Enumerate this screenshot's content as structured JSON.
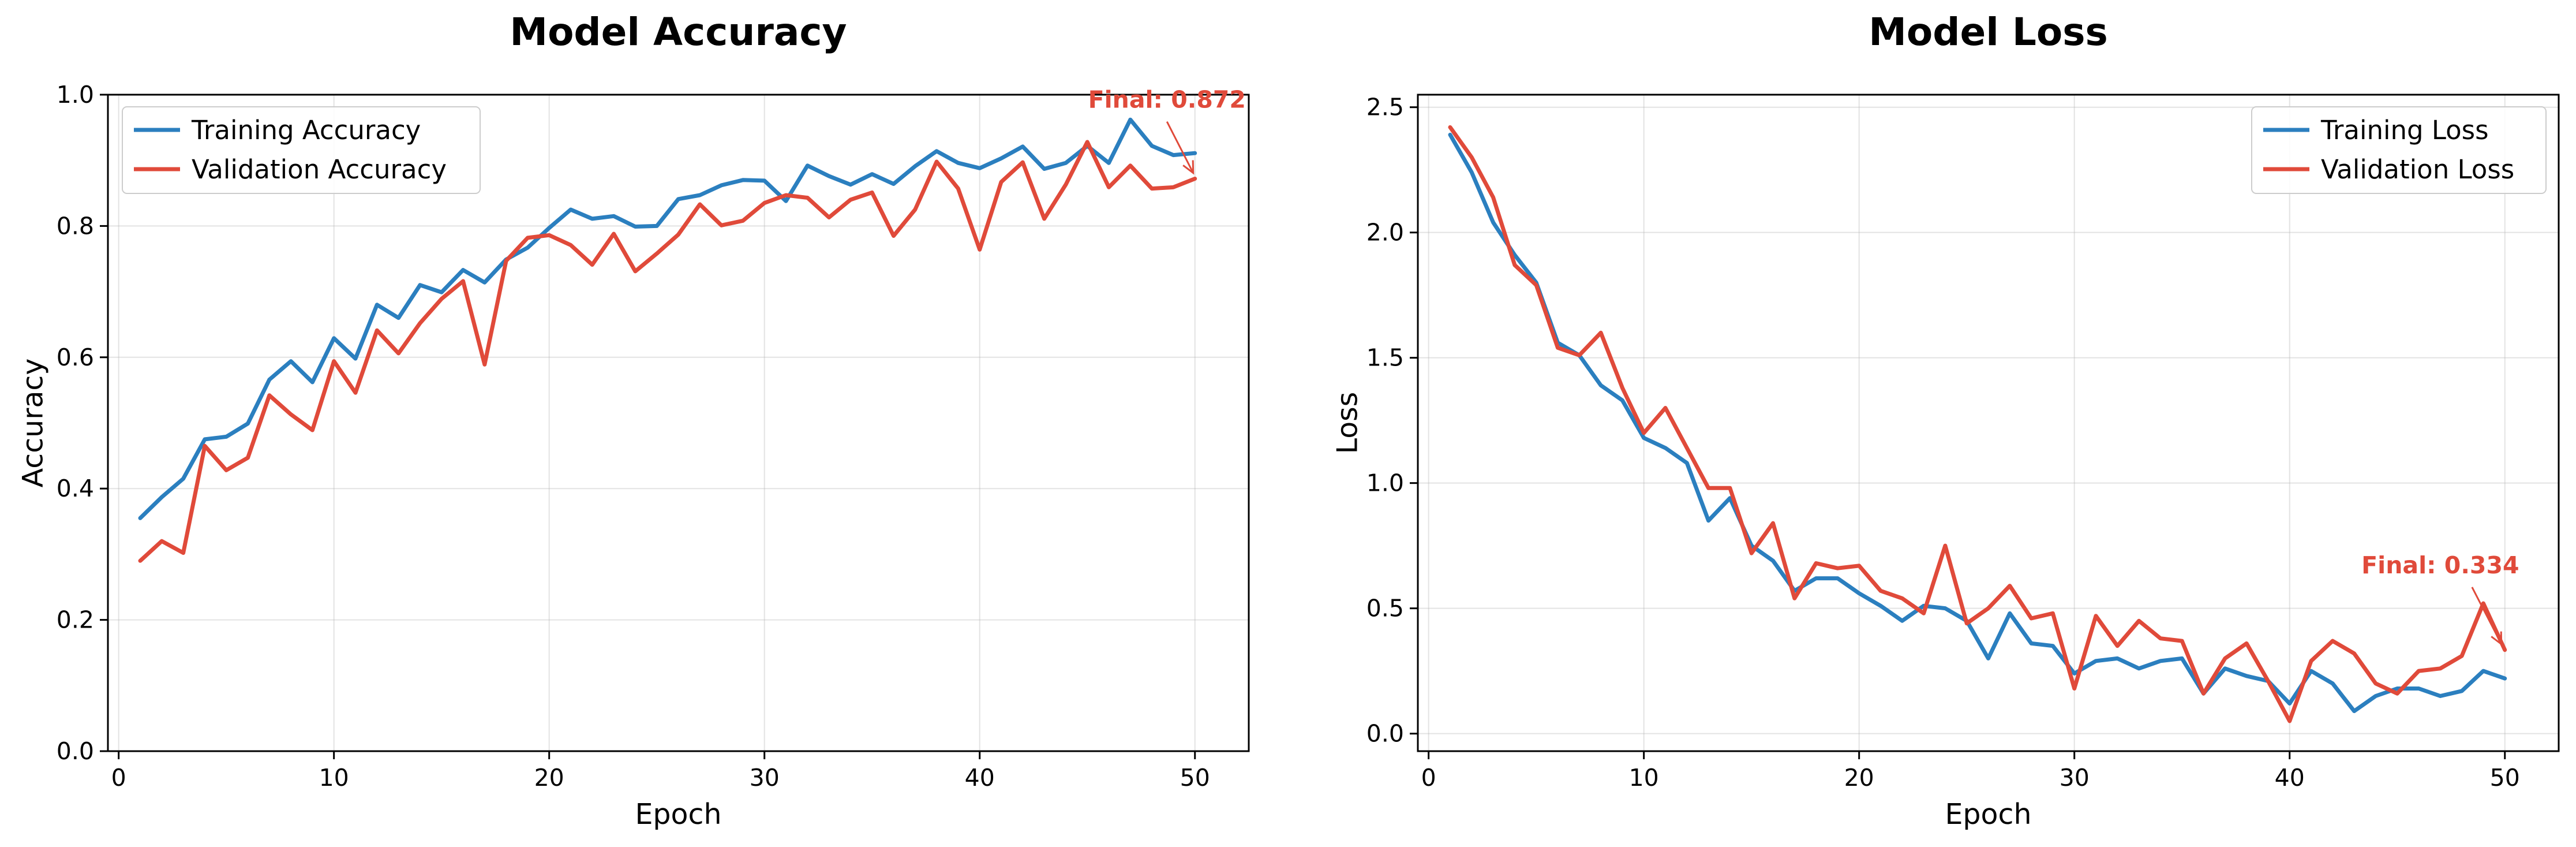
{
  "colors": {
    "train": "#2b7fbf",
    "val": "#e04a3a"
  },
  "chart_data": [
    {
      "type": "line",
      "title": "Model Accuracy",
      "xlabel": "Epoch",
      "ylabel": "Accuracy",
      "xlim": [
        -0.5,
        52.5
      ],
      "ylim": [
        0.0,
        1.0
      ],
      "xticks": [
        0,
        10,
        20,
        30,
        40,
        50
      ],
      "yticks": [
        0.0,
        0.2,
        0.4,
        0.6,
        0.8,
        1.0
      ],
      "ytick_labels": [
        "0.0",
        "0.2",
        "0.4",
        "0.6",
        "0.8",
        "1.0"
      ],
      "grid": true,
      "legend_position": "upper-left",
      "x": [
        1,
        2,
        3,
        4,
        5,
        6,
        7,
        8,
        9,
        10,
        11,
        12,
        13,
        14,
        15,
        16,
        17,
        18,
        19,
        20,
        21,
        22,
        23,
        24,
        25,
        26,
        27,
        28,
        29,
        30,
        31,
        32,
        33,
        34,
        35,
        36,
        37,
        38,
        39,
        40,
        41,
        42,
        43,
        44,
        45,
        46,
        47,
        48,
        49,
        50
      ],
      "series": [
        {
          "name": "Training Accuracy",
          "color_key": "train",
          "values": [
            0.355,
            0.387,
            0.415,
            0.475,
            0.479,
            0.499,
            0.566,
            0.594,
            0.562,
            0.629,
            0.598,
            0.68,
            0.66,
            0.71,
            0.699,
            0.733,
            0.714,
            0.749,
            0.767,
            0.797,
            0.825,
            0.811,
            0.815,
            0.799,
            0.8,
            0.841,
            0.847,
            0.862,
            0.87,
            0.869,
            0.838,
            0.892,
            0.876,
            0.863,
            0.879,
            0.864,
            0.891,
            0.914,
            0.896,
            0.888,
            0.903,
            0.921,
            0.887,
            0.896,
            0.922,
            0.896,
            0.962,
            0.922,
            0.908,
            0.911
          ]
        },
        {
          "name": "Validation Accuracy",
          "color_key": "val",
          "values": [
            0.29,
            0.32,
            0.302,
            0.465,
            0.428,
            0.447,
            0.542,
            0.513,
            0.489,
            0.594,
            0.546,
            0.641,
            0.606,
            0.652,
            0.689,
            0.716,
            0.589,
            0.747,
            0.782,
            0.786,
            0.771,
            0.741,
            0.788,
            0.731,
            0.758,
            0.787,
            0.833,
            0.801,
            0.808,
            0.835,
            0.847,
            0.843,
            0.813,
            0.84,
            0.851,
            0.785,
            0.825,
            0.898,
            0.857,
            0.764,
            0.867,
            0.897,
            0.811,
            0.863,
            0.928,
            0.859,
            0.892,
            0.857,
            0.859,
            0.872
          ]
        }
      ],
      "annotation": {
        "text": "Final: 0.872",
        "x": 50,
        "y": 0.872,
        "text_x": 48.7,
        "text_y": 0.98
      }
    },
    {
      "type": "line",
      "title": "Model Loss",
      "xlabel": "Epoch",
      "ylabel": "Loss",
      "xlim": [
        -0.5,
        52.5
      ],
      "ylim": [
        -0.07,
        2.55
      ],
      "xticks": [
        0,
        10,
        20,
        30,
        40,
        50
      ],
      "yticks": [
        0.0,
        0.5,
        1.0,
        1.5,
        2.0,
        2.5
      ],
      "ytick_labels": [
        "0.0",
        "0.5",
        "1.0",
        "1.5",
        "2.0",
        "2.5"
      ],
      "grid": true,
      "legend_position": "upper-right",
      "x": [
        1,
        2,
        3,
        4,
        5,
        6,
        7,
        8,
        9,
        10,
        11,
        12,
        13,
        14,
        15,
        16,
        17,
        18,
        19,
        20,
        21,
        22,
        23,
        24,
        25,
        26,
        27,
        28,
        29,
        30,
        31,
        32,
        33,
        34,
        35,
        36,
        37,
        38,
        39,
        40,
        41,
        42,
        43,
        44,
        45,
        46,
        47,
        48,
        49,
        50
      ],
      "series": [
        {
          "name": "Training Loss",
          "color_key": "train",
          "values": [
            2.39,
            2.24,
            2.04,
            1.91,
            1.8,
            1.56,
            1.51,
            1.39,
            1.33,
            1.18,
            1.14,
            1.08,
            0.85,
            0.94,
            0.75,
            0.69,
            0.57,
            0.62,
            0.62,
            0.56,
            0.51,
            0.45,
            0.51,
            0.5,
            0.45,
            0.3,
            0.48,
            0.36,
            0.35,
            0.24,
            0.29,
            0.3,
            0.26,
            0.29,
            0.3,
            0.16,
            0.26,
            0.23,
            0.21,
            0.12,
            0.25,
            0.2,
            0.09,
            0.15,
            0.18,
            0.18,
            0.15,
            0.17,
            0.25,
            0.22
          ]
        },
        {
          "name": "Validation Loss",
          "color_key": "val",
          "values": [
            2.42,
            2.3,
            2.14,
            1.87,
            1.79,
            1.54,
            1.51,
            1.6,
            1.38,
            1.2,
            1.3,
            1.14,
            0.98,
            0.98,
            0.72,
            0.84,
            0.54,
            0.68,
            0.66,
            0.67,
            0.57,
            0.54,
            0.48,
            0.75,
            0.44,
            0.5,
            0.59,
            0.46,
            0.48,
            0.18,
            0.47,
            0.35,
            0.45,
            0.38,
            0.37,
            0.16,
            0.3,
            0.36,
            0.21,
            0.05,
            0.29,
            0.37,
            0.32,
            0.2,
            0.16,
            0.25,
            0.26,
            0.31,
            0.52,
            0.334
          ]
        }
      ],
      "annotation": {
        "text": "Final: 0.334",
        "x": 50,
        "y": 0.334,
        "text_x": 47.0,
        "text_y": 0.64
      }
    }
  ]
}
